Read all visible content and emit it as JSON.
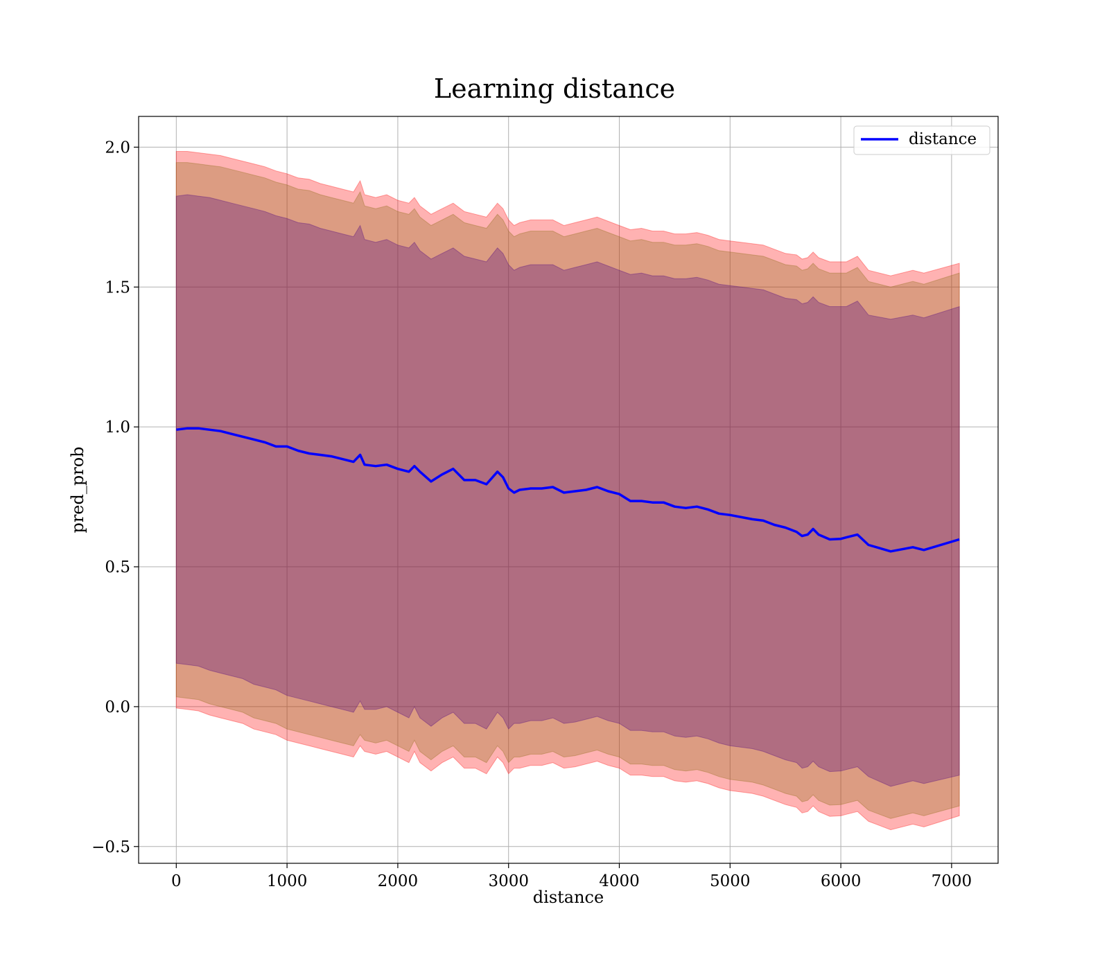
{
  "chart_data": {
    "type": "line",
    "title": "Learning distance",
    "xlabel": "distance",
    "ylabel": "pred_prob",
    "xlim": [
      -340,
      7420
    ],
    "ylim": [
      -0.56,
      2.11
    ],
    "xticks": [
      0,
      1000,
      2000,
      3000,
      4000,
      5000,
      6000,
      7000
    ],
    "xtick_labels": [
      "0",
      "1000",
      "2000",
      "3000",
      "4000",
      "5000",
      "6000",
      "7000"
    ],
    "yticks": [
      -0.5,
      0.0,
      0.5,
      1.0,
      1.5,
      2.0
    ],
    "ytick_labels": [
      "−0.5",
      "0.0",
      "0.5",
      "1.0",
      "1.5",
      "2.0"
    ],
    "grid": true,
    "legend": {
      "placement": "upper right",
      "entries": [
        "distance"
      ]
    },
    "colors": {
      "line": "#0000ff",
      "band_outer": "#ff0000",
      "band_middle": "#8b6914",
      "band_inner": "#4b0082",
      "grid": "#b0b0b0"
    },
    "x": [
      0,
      100,
      200,
      300,
      400,
      500,
      600,
      700,
      800,
      900,
      1000,
      1100,
      1200,
      1300,
      1400,
      1500,
      1600,
      1660,
      1700,
      1800,
      1900,
      2000,
      2100,
      2150,
      2200,
      2300,
      2400,
      2500,
      2600,
      2700,
      2800,
      2900,
      2950,
      3000,
      3050,
      3100,
      3200,
      3300,
      3400,
      3500,
      3600,
      3700,
      3800,
      3900,
      4000,
      4100,
      4200,
      4300,
      4400,
      4500,
      4600,
      4700,
      4800,
      4900,
      5000,
      5200,
      5300,
      5400,
      5500,
      5600,
      5650,
      5700,
      5750,
      5800,
      5900,
      6000,
      6050,
      6150,
      6250,
      6450,
      6650,
      6750,
      7070
    ],
    "series": [
      {
        "name": "distance",
        "values": [
          0.99,
          0.995,
          0.995,
          0.99,
          0.985,
          0.975,
          0.965,
          0.955,
          0.945,
          0.93,
          0.93,
          0.915,
          0.905,
          0.9,
          0.895,
          0.885,
          0.875,
          0.9,
          0.865,
          0.86,
          0.865,
          0.85,
          0.84,
          0.86,
          0.84,
          0.805,
          0.83,
          0.85,
          0.81,
          0.81,
          0.795,
          0.84,
          0.82,
          0.78,
          0.765,
          0.775,
          0.78,
          0.78,
          0.785,
          0.765,
          0.77,
          0.775,
          0.785,
          0.77,
          0.76,
          0.735,
          0.735,
          0.73,
          0.73,
          0.715,
          0.71,
          0.715,
          0.705,
          0.69,
          0.685,
          0.67,
          0.665,
          0.65,
          0.64,
          0.625,
          0.61,
          0.615,
          0.635,
          0.615,
          0.598,
          0.6,
          0.605,
          0.615,
          0.578,
          0.555,
          0.57,
          0.56,
          0.598
        ]
      }
    ],
    "bands": [
      {
        "color": "#ff0000",
        "lower": [
          -0.005,
          -0.01,
          -0.015,
          -0.03,
          -0.04,
          -0.05,
          -0.06,
          -0.08,
          -0.09,
          -0.1,
          -0.12,
          -0.13,
          -0.14,
          -0.15,
          -0.16,
          -0.17,
          -0.18,
          -0.14,
          -0.16,
          -0.17,
          -0.16,
          -0.18,
          -0.2,
          -0.16,
          -0.2,
          -0.23,
          -0.2,
          -0.18,
          -0.22,
          -0.22,
          -0.24,
          -0.18,
          -0.2,
          -0.24,
          -0.22,
          -0.22,
          -0.21,
          -0.21,
          -0.2,
          -0.22,
          -0.215,
          -0.205,
          -0.195,
          -0.21,
          -0.22,
          -0.245,
          -0.245,
          -0.25,
          -0.25,
          -0.265,
          -0.27,
          -0.265,
          -0.275,
          -0.29,
          -0.3,
          -0.31,
          -0.32,
          -0.335,
          -0.35,
          -0.36,
          -0.38,
          -0.375,
          -0.355,
          -0.375,
          -0.392,
          -0.39,
          -0.385,
          -0.375,
          -0.41,
          -0.44,
          -0.42,
          -0.43,
          -0.39
        ]
      },
      {
        "color": "#ff0000",
        "upper": [
          1.985,
          1.985,
          1.98,
          1.975,
          1.97,
          1.96,
          1.95,
          1.94,
          1.93,
          1.915,
          1.905,
          1.89,
          1.885,
          1.87,
          1.86,
          1.85,
          1.84,
          1.88,
          1.83,
          1.82,
          1.83,
          1.81,
          1.8,
          1.82,
          1.79,
          1.76,
          1.78,
          1.8,
          1.77,
          1.76,
          1.75,
          1.8,
          1.78,
          1.74,
          1.72,
          1.73,
          1.74,
          1.74,
          1.74,
          1.72,
          1.73,
          1.74,
          1.75,
          1.735,
          1.72,
          1.705,
          1.71,
          1.7,
          1.7,
          1.69,
          1.69,
          1.695,
          1.685,
          1.67,
          1.665,
          1.655,
          1.65,
          1.635,
          1.62,
          1.615,
          1.6,
          1.605,
          1.625,
          1.605,
          1.59,
          1.59,
          1.59,
          1.61,
          1.56,
          1.54,
          1.56,
          1.55,
          1.585
        ]
      },
      {
        "color": "#8b6914",
        "lower": [
          0.035,
          0.03,
          0.025,
          0.01,
          0.0,
          -0.01,
          -0.02,
          -0.04,
          -0.05,
          -0.06,
          -0.08,
          -0.09,
          -0.1,
          -0.11,
          -0.12,
          -0.13,
          -0.14,
          -0.1,
          -0.12,
          -0.13,
          -0.12,
          -0.14,
          -0.16,
          -0.12,
          -0.16,
          -0.19,
          -0.16,
          -0.14,
          -0.18,
          -0.18,
          -0.2,
          -0.14,
          -0.16,
          -0.2,
          -0.18,
          -0.18,
          -0.17,
          -0.17,
          -0.16,
          -0.18,
          -0.175,
          -0.165,
          -0.155,
          -0.17,
          -0.18,
          -0.205,
          -0.205,
          -0.21,
          -0.21,
          -0.225,
          -0.23,
          -0.225,
          -0.235,
          -0.25,
          -0.26,
          -0.27,
          -0.28,
          -0.295,
          -0.31,
          -0.32,
          -0.34,
          -0.335,
          -0.315,
          -0.335,
          -0.352,
          -0.35,
          -0.345,
          -0.335,
          -0.37,
          -0.4,
          -0.38,
          -0.39,
          -0.355
        ]
      },
      {
        "color": "#8b6914",
        "upper": [
          1.945,
          1.945,
          1.94,
          1.935,
          1.93,
          1.92,
          1.91,
          1.9,
          1.89,
          1.875,
          1.865,
          1.85,
          1.845,
          1.83,
          1.82,
          1.81,
          1.8,
          1.84,
          1.79,
          1.78,
          1.79,
          1.77,
          1.76,
          1.78,
          1.75,
          1.72,
          1.74,
          1.76,
          1.73,
          1.72,
          1.71,
          1.76,
          1.74,
          1.7,
          1.68,
          1.69,
          1.7,
          1.7,
          1.7,
          1.68,
          1.69,
          1.7,
          1.71,
          1.695,
          1.68,
          1.665,
          1.67,
          1.66,
          1.66,
          1.65,
          1.65,
          1.655,
          1.645,
          1.63,
          1.625,
          1.615,
          1.61,
          1.595,
          1.58,
          1.575,
          1.56,
          1.565,
          1.585,
          1.565,
          1.55,
          1.55,
          1.55,
          1.57,
          1.52,
          1.5,
          1.52,
          1.51,
          1.55
        ]
      },
      {
        "color": "#4b0082",
        "lower": [
          0.155,
          0.15,
          0.145,
          0.13,
          0.12,
          0.11,
          0.1,
          0.08,
          0.07,
          0.06,
          0.04,
          0.03,
          0.02,
          0.01,
          0.0,
          -0.01,
          -0.02,
          0.02,
          -0.01,
          -0.01,
          0.0,
          -0.02,
          -0.04,
          0.0,
          -0.04,
          -0.07,
          -0.04,
          -0.02,
          -0.06,
          -0.06,
          -0.08,
          -0.02,
          -0.04,
          -0.08,
          -0.06,
          -0.06,
          -0.05,
          -0.05,
          -0.04,
          -0.06,
          -0.055,
          -0.045,
          -0.035,
          -0.05,
          -0.06,
          -0.085,
          -0.085,
          -0.09,
          -0.09,
          -0.105,
          -0.11,
          -0.105,
          -0.115,
          -0.13,
          -0.14,
          -0.15,
          -0.16,
          -0.175,
          -0.19,
          -0.2,
          -0.22,
          -0.215,
          -0.195,
          -0.215,
          -0.232,
          -0.23,
          -0.225,
          -0.215,
          -0.25,
          -0.285,
          -0.265,
          -0.275,
          -0.245
        ]
      },
      {
        "color": "#4b0082",
        "upper": [
          1.825,
          1.83,
          1.825,
          1.82,
          1.81,
          1.8,
          1.79,
          1.78,
          1.77,
          1.755,
          1.745,
          1.73,
          1.725,
          1.71,
          1.7,
          1.69,
          1.68,
          1.72,
          1.67,
          1.66,
          1.67,
          1.65,
          1.64,
          1.66,
          1.63,
          1.6,
          1.62,
          1.64,
          1.61,
          1.6,
          1.59,
          1.64,
          1.62,
          1.58,
          1.56,
          1.57,
          1.58,
          1.58,
          1.58,
          1.56,
          1.57,
          1.58,
          1.59,
          1.575,
          1.56,
          1.545,
          1.55,
          1.54,
          1.54,
          1.53,
          1.53,
          1.535,
          1.525,
          1.51,
          1.505,
          1.495,
          1.49,
          1.475,
          1.46,
          1.455,
          1.44,
          1.445,
          1.465,
          1.445,
          1.43,
          1.43,
          1.43,
          1.45,
          1.4,
          1.385,
          1.4,
          1.39,
          1.43
        ]
      }
    ]
  }
}
